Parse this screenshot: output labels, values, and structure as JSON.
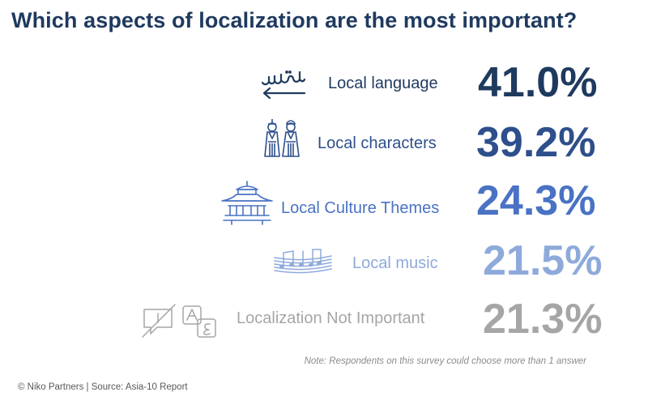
{
  "chart_data": {
    "type": "table",
    "title": "Which aspects of localization are the most important?",
    "categories": [
      "Local language",
      "Local characters",
      "Local Culture Themes",
      "Local music",
      "Localization Not Important"
    ],
    "values": [
      41.0,
      39.2,
      24.3,
      21.5,
      21.3
    ],
    "value_labels": [
      "41.0%",
      "39.2%",
      "24.3%",
      "21.5%",
      "21.3%"
    ],
    "icons": [
      "arabic-script-arrow-icon",
      "traditional-dolls-icon",
      "pagoda-icon",
      "music-staff-icon",
      "no-translation-icon"
    ],
    "colors": [
      "#1f3a5f",
      "#2e4f8c",
      "#4a72c4",
      "#8eaadb",
      "#a6a6a6"
    ]
  },
  "note": "Note: Respondents on this survey could choose more than 1 answer",
  "footer": "© Niko Partners | Source: Asia-10 Report"
}
